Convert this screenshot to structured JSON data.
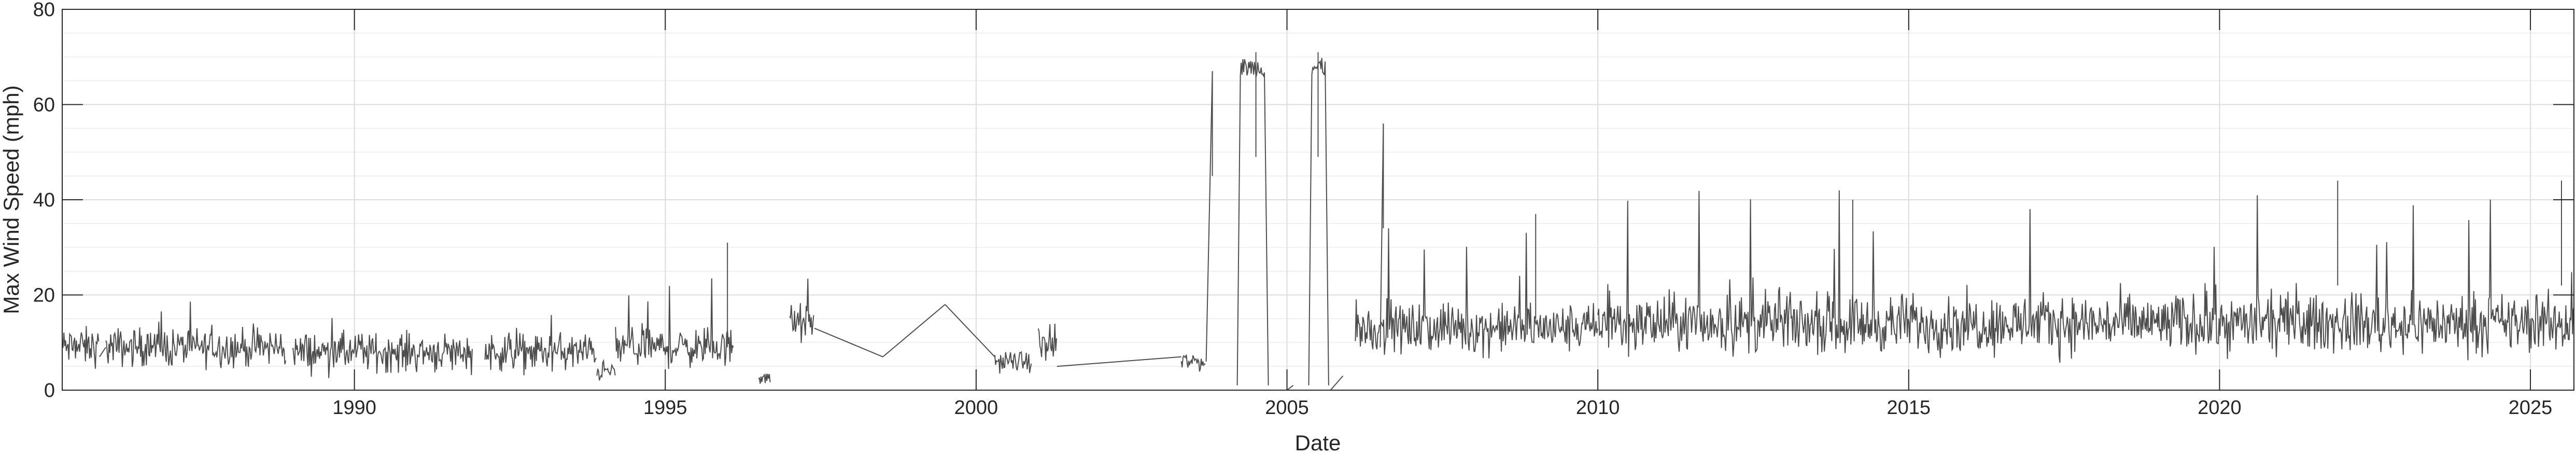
{
  "chart_data": {
    "type": "line",
    "title": "",
    "xlabel": "Date",
    "ylabel": "Max Wind Speed (mph)",
    "xlim": [
      1985.3,
      2025.7
    ],
    "ylim": [
      0,
      80
    ],
    "x_tick_labels": [
      "1990",
      "1995",
      "2000",
      "2005",
      "2010",
      "2015",
      "2020",
      "2025"
    ],
    "x_ticks": [
      1990,
      1995,
      2000,
      2005,
      2010,
      2015,
      2020,
      2025
    ],
    "y_tick_labels": [
      "0",
      "20",
      "40",
      "60",
      "80"
    ],
    "y_ticks": [
      0,
      20,
      40,
      60,
      80
    ],
    "grid": true,
    "minor_grid_y": true,
    "series": [
      {
        "color": "#4d4d4d",
        "segments": [
          {
            "x": [
              1985.3,
              1985.9
            ],
            "base": 9,
            "noise": 4,
            "spike": 16
          },
          {
            "x": [
              1986.0,
              1988.9
            ],
            "base": 9,
            "noise": 4,
            "spike": 19
          },
          {
            "x": [
              1989.0,
              1991.9
            ],
            "base": 8,
            "noise": 4,
            "spike": 19
          },
          {
            "x": [
              1992.1,
              1993.9
            ],
            "base": 8,
            "noise": 4,
            "spike": 19
          },
          {
            "x": [
              1993.9,
              1994.2
            ],
            "base": 4,
            "noise": 2,
            "spike": 9
          },
          {
            "x": [
              1994.2,
              1996.1
            ],
            "base": 9,
            "noise": 4,
            "spike": 31
          },
          {
            "x": [
              1996.5,
              1996.7
            ],
            "base": 3,
            "noise": 2,
            "spike": 5
          },
          {
            "x": [
              1997.0,
              1997.4
            ],
            "base": 14,
            "noise": 4,
            "spike": 28
          },
          {
            "x": [
              2000.3,
              2000.9
            ],
            "base": 6,
            "noise": 2,
            "spike": 9
          },
          {
            "x": [
              2001.0,
              2001.3
            ],
            "base": 9,
            "noise": 4,
            "spike": 26
          },
          {
            "x": [
              2003.3,
              2003.7
            ],
            "base": 6,
            "noise": 2,
            "spike": 9
          },
          {
            "x": [
              2006.1,
              2010.0
            ],
            "base": 13,
            "noise": 5,
            "spike": 37
          },
          {
            "x": [
              2010.0,
              2025.7
            ],
            "base": 14,
            "noise": 6,
            "spike": 44
          }
        ],
        "connectors": [
          [
            1985.9,
            7,
            1986.0,
            9
          ],
          [
            1997.4,
            13,
            1998.5,
            7
          ],
          [
            1998.5,
            7,
            1999.5,
            18
          ],
          [
            1999.5,
            18,
            2000.3,
            7
          ],
          [
            2001.3,
            5,
            2003.3,
            7
          ],
          [
            2003.7,
            6,
            2003.8,
            67
          ],
          [
            2003.8,
            0,
            2004.1,
            0
          ],
          [
            2005.0,
            0,
            2005.1,
            1
          ],
          [
            2005.7,
            0,
            2005.9,
            3
          ],
          [
            2006.5,
            9,
            2006.55,
            56
          ]
        ],
        "plateaus": [
          {
            "x": [
              2004.25,
              2004.65
            ],
            "base": 67,
            "noise": 4,
            "peak": 71
          },
          {
            "x": [
              2005.4,
              2005.62
            ],
            "base": 67,
            "noise": 4,
            "peak": 71
          }
        ],
        "notable_points": [
          {
            "x": 1996.0,
            "y": 31
          },
          {
            "x": 2003.8,
            "y": 67
          },
          {
            "x": 2004.5,
            "y": 71
          },
          {
            "x": 2005.5,
            "y": 71
          },
          {
            "x": 2006.55,
            "y": 56
          },
          {
            "x": 2009.0,
            "y": 37
          },
          {
            "x": 2014.1,
            "y": 40
          },
          {
            "x": 2021.9,
            "y": 44
          },
          {
            "x": 2025.5,
            "y": 44
          }
        ]
      }
    ]
  }
}
